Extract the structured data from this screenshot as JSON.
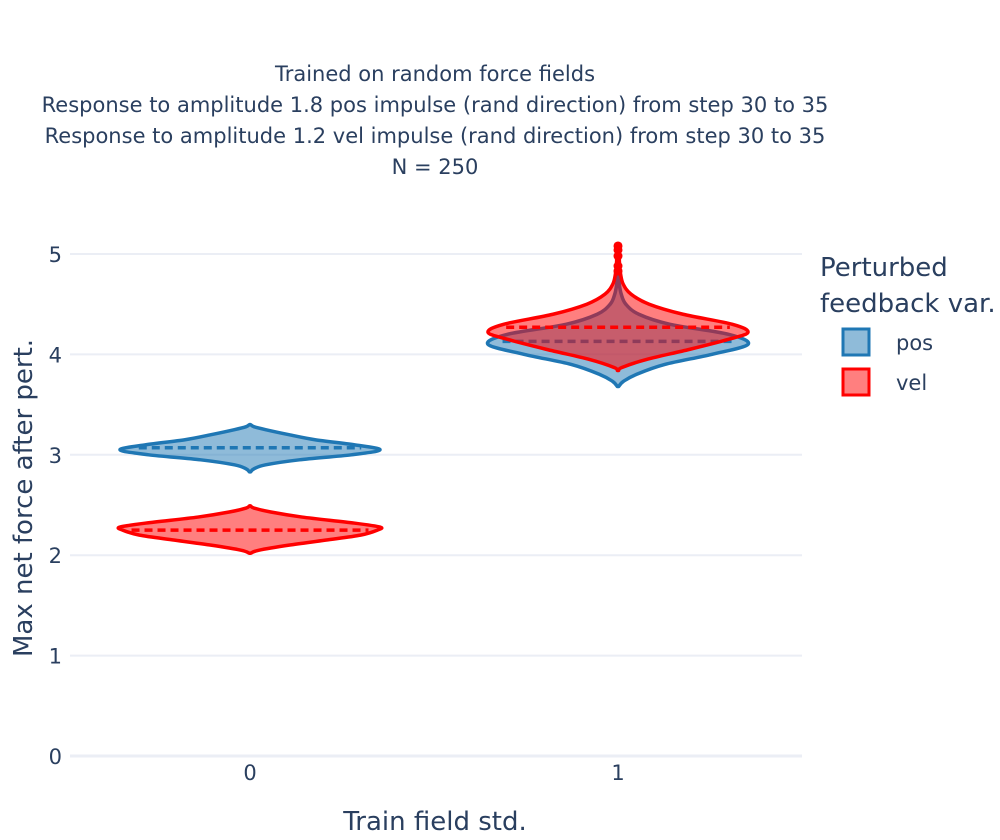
{
  "chart_data": {
    "type": "violin",
    "title_lines": [
      "Trained on random force fields",
      "Response to amplitude 1.8 pos impulse (rand direction) from step 30 to 35",
      "Response to amplitude 1.2 vel impulse (rand direction) from step 30 to 35",
      "N = 250"
    ],
    "xlabel": "Train field std.",
    "ylabel": "Max net force after pert.",
    "categories": [
      "0",
      "1"
    ],
    "y_ticks": [
      "0",
      "1",
      "2",
      "3",
      "4",
      "5"
    ],
    "ylim": [
      0,
      5
    ],
    "grid": true,
    "legend": {
      "title_lines": [
        "Perturbed",
        "feedback var."
      ],
      "placement": "right"
    },
    "series": [
      {
        "name": "pos",
        "line_color": "#1f77b4",
        "fill_color": "#1f77b4",
        "violins": [
          {
            "category": "0",
            "mean": 3.07,
            "profile": [
              [
                2.83,
                0.005
              ],
              [
                2.86,
                0.03
              ],
              [
                2.9,
                0.12
              ],
              [
                2.95,
                0.38
              ],
              [
                3.0,
                0.78
              ],
              [
                3.05,
                1.0
              ],
              [
                3.1,
                0.8
              ],
              [
                3.15,
                0.5
              ],
              [
                3.2,
                0.3
              ],
              [
                3.25,
                0.12
              ],
              [
                3.28,
                0.03
              ],
              [
                3.3,
                0.005
              ]
            ]
          },
          {
            "category": "1",
            "mean": 4.13,
            "profile": [
              [
                3.68,
                0.005
              ],
              [
                3.73,
                0.04
              ],
              [
                3.8,
                0.14
              ],
              [
                3.9,
                0.36
              ],
              [
                4.0,
                0.72
              ],
              [
                4.1,
                1.0
              ],
              [
                4.2,
                0.85
              ],
              [
                4.3,
                0.4
              ],
              [
                4.4,
                0.16
              ],
              [
                4.5,
                0.06
              ],
              [
                4.6,
                0.025
              ],
              [
                4.7,
                0.01
              ],
              [
                4.8,
                0.004
              ]
            ]
          }
        ]
      },
      {
        "name": "vel",
        "line_color": "#ff0000",
        "fill_color": "#ff0000",
        "violins": [
          {
            "category": "0",
            "mean": 2.25,
            "profile": [
              [
                2.02,
                0.005
              ],
              [
                2.05,
                0.07
              ],
              [
                2.1,
                0.3
              ],
              [
                2.15,
                0.58
              ],
              [
                2.2,
                0.85
              ],
              [
                2.25,
                0.98
              ],
              [
                2.28,
                1.0
              ],
              [
                2.32,
                0.8
              ],
              [
                2.38,
                0.4
              ],
              [
                2.43,
                0.16
              ],
              [
                2.47,
                0.03
              ],
              [
                2.49,
                0.005
              ]
            ]
          },
          {
            "category": "1",
            "mean": 4.27,
            "profile": [
              [
                3.84,
                0.005
              ],
              [
                3.87,
                0.03
              ],
              [
                3.95,
                0.22
              ],
              [
                4.05,
                0.55
              ],
              [
                4.15,
                0.85
              ],
              [
                4.22,
                1.0
              ],
              [
                4.3,
                0.88
              ],
              [
                4.4,
                0.5
              ],
              [
                4.5,
                0.24
              ],
              [
                4.6,
                0.1
              ],
              [
                4.7,
                0.04
              ],
              [
                4.8,
                0.02
              ],
              [
                4.9,
                0.012
              ],
              [
                5.0,
                0.008
              ],
              [
                5.08,
                0.005
              ]
            ]
          }
        ]
      }
    ]
  }
}
